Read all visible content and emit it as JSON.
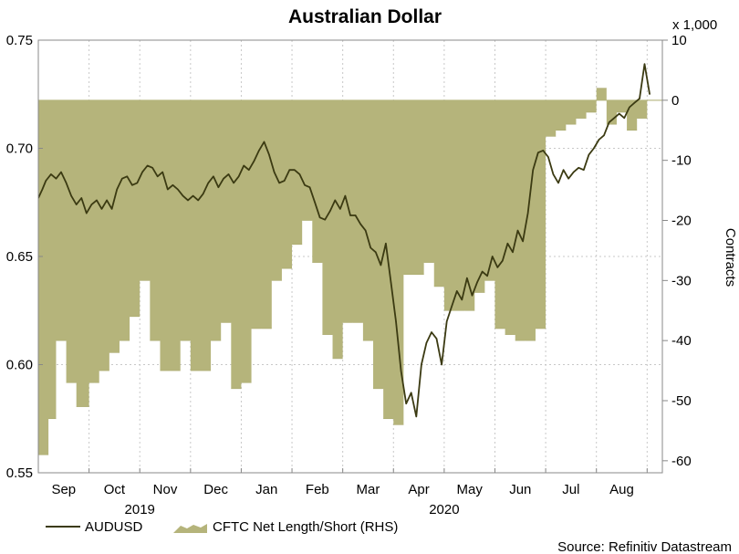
{
  "chart_data": {
    "type": "line",
    "title": "Australian Dollar",
    "source": "Source: Refinitiv Datastream",
    "left_axis": {
      "min": 0.55,
      "max": 0.75,
      "ticks": [
        "0.55",
        "0.60",
        "0.65",
        "0.70",
        "0.75"
      ]
    },
    "right_axis": {
      "min": -62,
      "max": 10,
      "label": "Contracts",
      "scale_note": "x 1,000",
      "ticks": [
        "-60",
        "-50",
        "-40",
        "-30",
        "-20",
        "-10",
        "0",
        "10"
      ]
    },
    "x_axis": {
      "months": [
        "Sep",
        "Oct",
        "Nov",
        "Dec",
        "Jan",
        "Feb",
        "Mar",
        "Apr",
        "May",
        "Jun",
        "Jul",
        "Aug"
      ],
      "years": [
        "2019",
        "2020"
      ],
      "start": 0,
      "end": 12.3
    },
    "series": [
      {
        "name": "AUDUSD",
        "color": "#3b3a12",
        "x": [
          0.0,
          0.08,
          0.15,
          0.25,
          0.35,
          0.45,
          0.55,
          0.65,
          0.75,
          0.85,
          0.95,
          1.05,
          1.15,
          1.25,
          1.35,
          1.45,
          1.55,
          1.65,
          1.75,
          1.85,
          1.95,
          2.05,
          2.15,
          2.25,
          2.35,
          2.45,
          2.55,
          2.65,
          2.75,
          2.85,
          2.95,
          3.05,
          3.15,
          3.25,
          3.35,
          3.45,
          3.55,
          3.65,
          3.75,
          3.85,
          3.95,
          4.05,
          4.15,
          4.25,
          4.35,
          4.45,
          4.55,
          4.65,
          4.75,
          4.85,
          4.95,
          5.05,
          5.15,
          5.25,
          5.35,
          5.45,
          5.55,
          5.65,
          5.75,
          5.85,
          5.95,
          6.05,
          6.15,
          6.25,
          6.35,
          6.45,
          6.55,
          6.65,
          6.75,
          6.85,
          6.95,
          7.05,
          7.15,
          7.25,
          7.35,
          7.45,
          7.55,
          7.65,
          7.75,
          7.85,
          7.95,
          8.05,
          8.15,
          8.25,
          8.35,
          8.45,
          8.55,
          8.65,
          8.75,
          8.85,
          8.95,
          9.05,
          9.15,
          9.25,
          9.35,
          9.45,
          9.55,
          9.65,
          9.75,
          9.85,
          9.95,
          10.05,
          10.15,
          10.25,
          10.35,
          10.45,
          10.55,
          10.65,
          10.75,
          10.85,
          10.95,
          11.05,
          11.15,
          11.25,
          11.35,
          11.45,
          11.55,
          11.65,
          11.75,
          11.85,
          11.95,
          12.05
        ],
        "values": [
          0.677,
          0.681,
          0.685,
          0.688,
          0.686,
          0.689,
          0.684,
          0.678,
          0.674,
          0.677,
          0.67,
          0.674,
          0.676,
          0.672,
          0.676,
          0.672,
          0.681,
          0.686,
          0.687,
          0.683,
          0.684,
          0.689,
          0.692,
          0.691,
          0.687,
          0.689,
          0.681,
          0.683,
          0.681,
          0.678,
          0.676,
          0.678,
          0.676,
          0.679,
          0.684,
          0.687,
          0.682,
          0.686,
          0.688,
          0.684,
          0.687,
          0.692,
          0.69,
          0.694,
          0.699,
          0.703,
          0.697,
          0.689,
          0.684,
          0.685,
          0.69,
          0.69,
          0.688,
          0.683,
          0.682,
          0.675,
          0.668,
          0.667,
          0.671,
          0.676,
          0.672,
          0.678,
          0.669,
          0.669,
          0.665,
          0.662,
          0.654,
          0.652,
          0.646,
          0.656,
          0.638,
          0.62,
          0.597,
          0.582,
          0.587,
          0.576,
          0.6,
          0.61,
          0.615,
          0.612,
          0.6,
          0.62,
          0.627,
          0.634,
          0.63,
          0.64,
          0.632,
          0.638,
          0.643,
          0.641,
          0.65,
          0.645,
          0.648,
          0.656,
          0.652,
          0.662,
          0.657,
          0.67,
          0.69,
          0.698,
          0.699,
          0.696,
          0.688,
          0.684,
          0.69,
          0.686,
          0.689,
          0.691,
          0.69,
          0.697,
          0.7,
          0.704,
          0.706,
          0.712,
          0.714,
          0.716,
          0.714,
          0.719,
          0.721,
          0.723,
          0.739,
          0.725
        ]
      },
      {
        "name": "CFTC Net Length/Short (RHS)",
        "color": "#b5b47b",
        "step_x": [
          0.0,
          0.2,
          0.35,
          0.55,
          0.75,
          1.0,
          1.1,
          1.2,
          1.4,
          1.6,
          1.8,
          2.0,
          2.2,
          2.4,
          2.6,
          2.8,
          3.0,
          3.2,
          3.4,
          3.6,
          3.8,
          4.0,
          4.2,
          4.4,
          4.6,
          4.8,
          5.0,
          5.2,
          5.4,
          5.6,
          5.8,
          6.0,
          6.2,
          6.4,
          6.6,
          6.8,
          7.0,
          7.2,
          7.4,
          7.6,
          7.8,
          8.0,
          8.2,
          8.4,
          8.6,
          8.8,
          9.0,
          9.2,
          9.4,
          9.6,
          9.8,
          10.0,
          10.2,
          10.4,
          10.6,
          10.8,
          11.0,
          11.2,
          11.4,
          11.6,
          11.8,
          12.0,
          12.2
        ],
        "step_values": [
          -59,
          -53,
          -40,
          -47,
          -51,
          -47,
          -47,
          -45,
          -42,
          -40,
          -36,
          -30,
          -40,
          -45,
          -45,
          -40,
          -45,
          -45,
          -40,
          -37,
          -48,
          -47,
          -38,
          -38,
          -30,
          -28,
          -24,
          -20,
          -27,
          -39,
          -43,
          -37,
          -37,
          -40,
          -48,
          -53,
          -54,
          -29,
          -29,
          -27,
          -31,
          -35,
          -35,
          -35,
          -32,
          -30,
          -38,
          -39,
          -40,
          -40,
          -38,
          -6,
          -5,
          -4,
          -3,
          -2,
          2,
          -4,
          -2,
          -5,
          -3,
          0,
          0
        ]
      }
    ]
  }
}
